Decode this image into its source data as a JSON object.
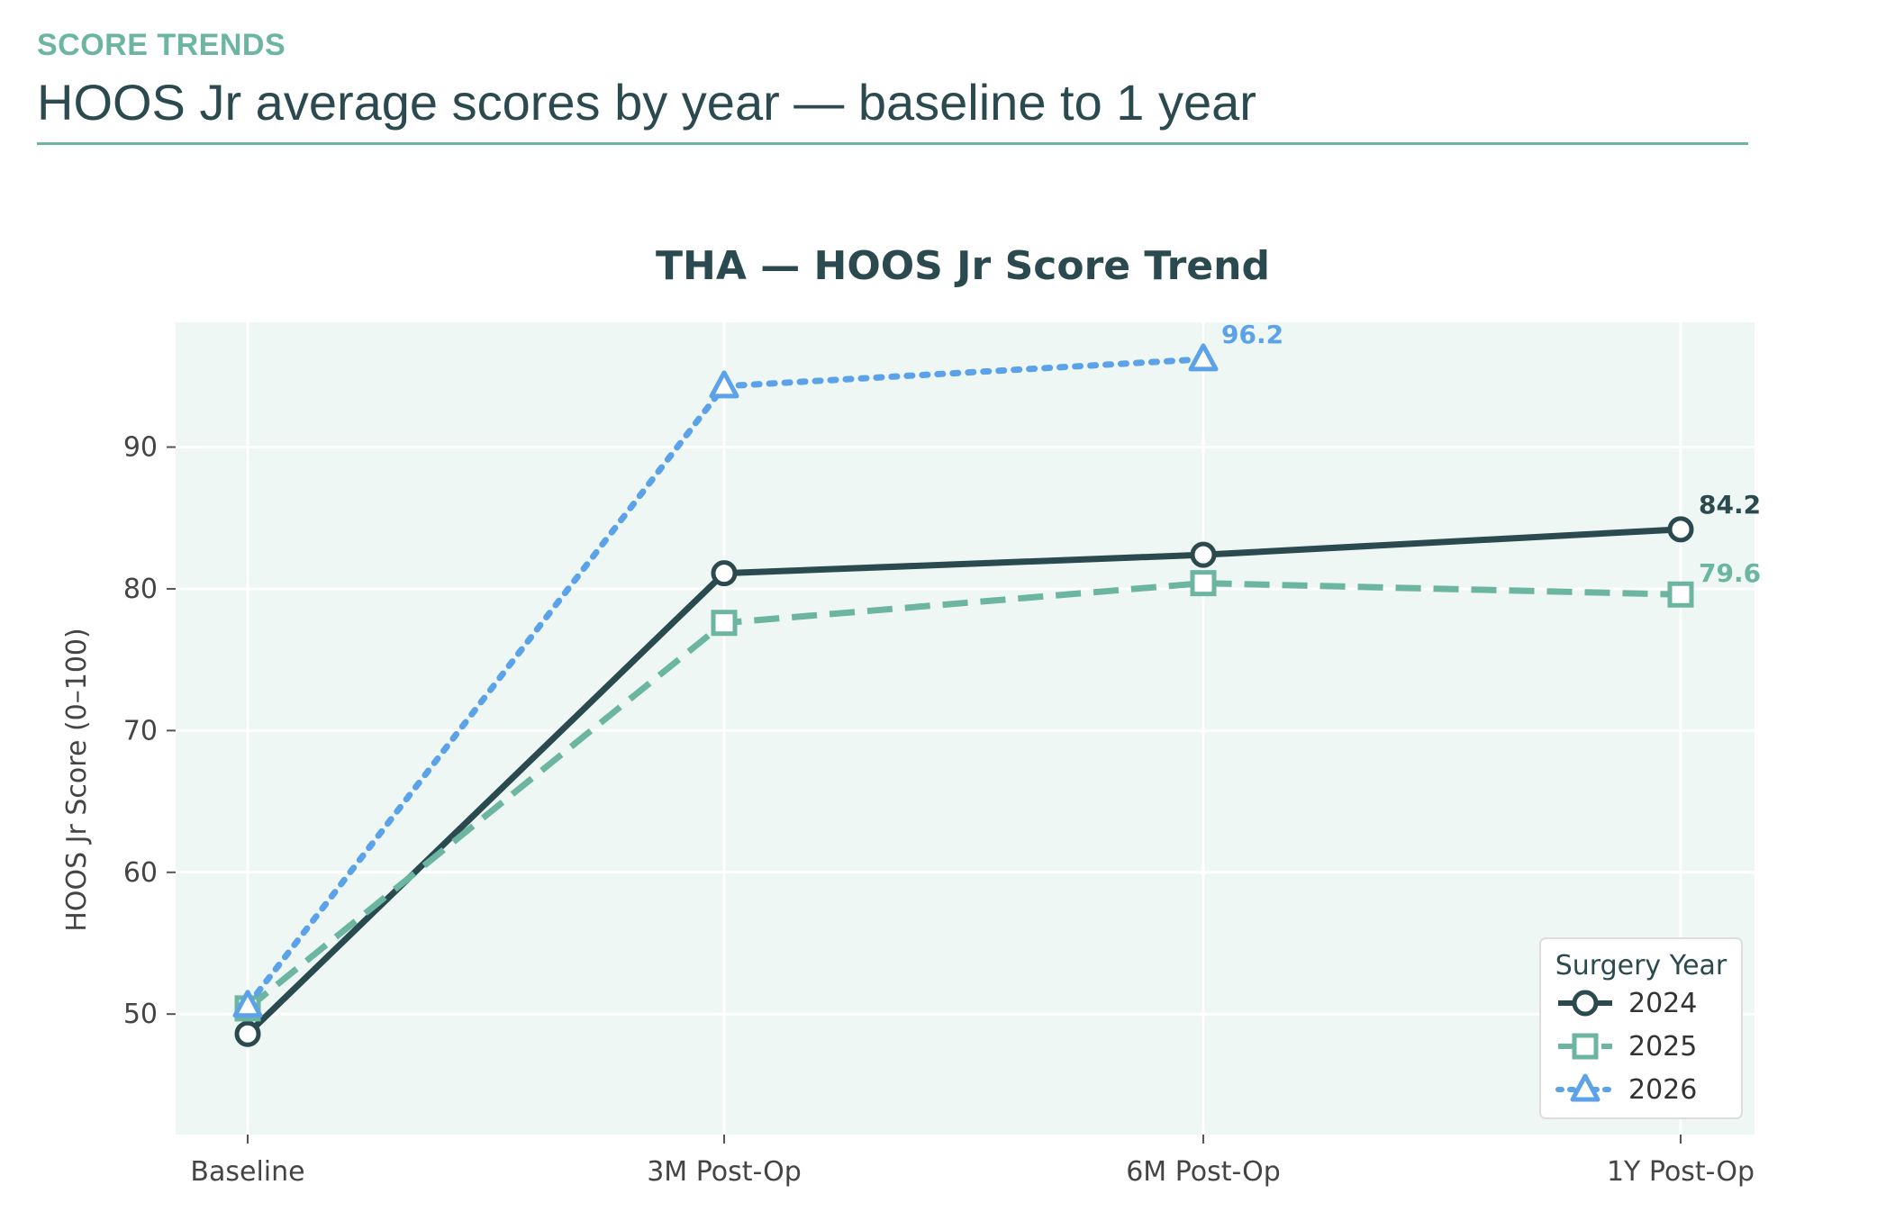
{
  "header": {
    "eyebrow": "SCORE TRENDS",
    "title": "HOOS Jr average scores by year — baseline to 1 year"
  },
  "colors": {
    "accent": "#6bb5a1",
    "dark": "#2b4a4f",
    "plot_bg": "#eef7f3"
  },
  "chart_data": {
    "type": "line",
    "title": "THA — HOOS Jr Score Trend",
    "xlabel": "",
    "ylabel": "HOOS Jr Score (0–100)",
    "categories": [
      "Baseline",
      "3M Post-Op",
      "6M Post-Op",
      "1Y Post-Op"
    ],
    "ylim": [
      41.5,
      98.8
    ],
    "yticks": [
      50,
      60,
      70,
      80,
      90
    ],
    "grid": true,
    "legend": {
      "title": "Surgery Year",
      "position": "bottom-right"
    },
    "series": [
      {
        "name": "2024",
        "values": [
          48.6,
          81.1,
          82.4,
          84.2
        ],
        "color": "#2b4a4f",
        "dash": "solid",
        "marker": "circle",
        "end_label": "84.2"
      },
      {
        "name": "2025",
        "values": [
          50.4,
          77.6,
          80.4,
          79.6
        ],
        "color": "#6bb5a1",
        "dash": "dashed",
        "marker": "square",
        "end_label": "79.6"
      },
      {
        "name": "2026",
        "values": [
          50.6,
          94.3,
          96.2,
          null
        ],
        "color": "#5ba2e8",
        "dash": "dotted",
        "marker": "triangle",
        "end_label": "96.2"
      }
    ]
  }
}
